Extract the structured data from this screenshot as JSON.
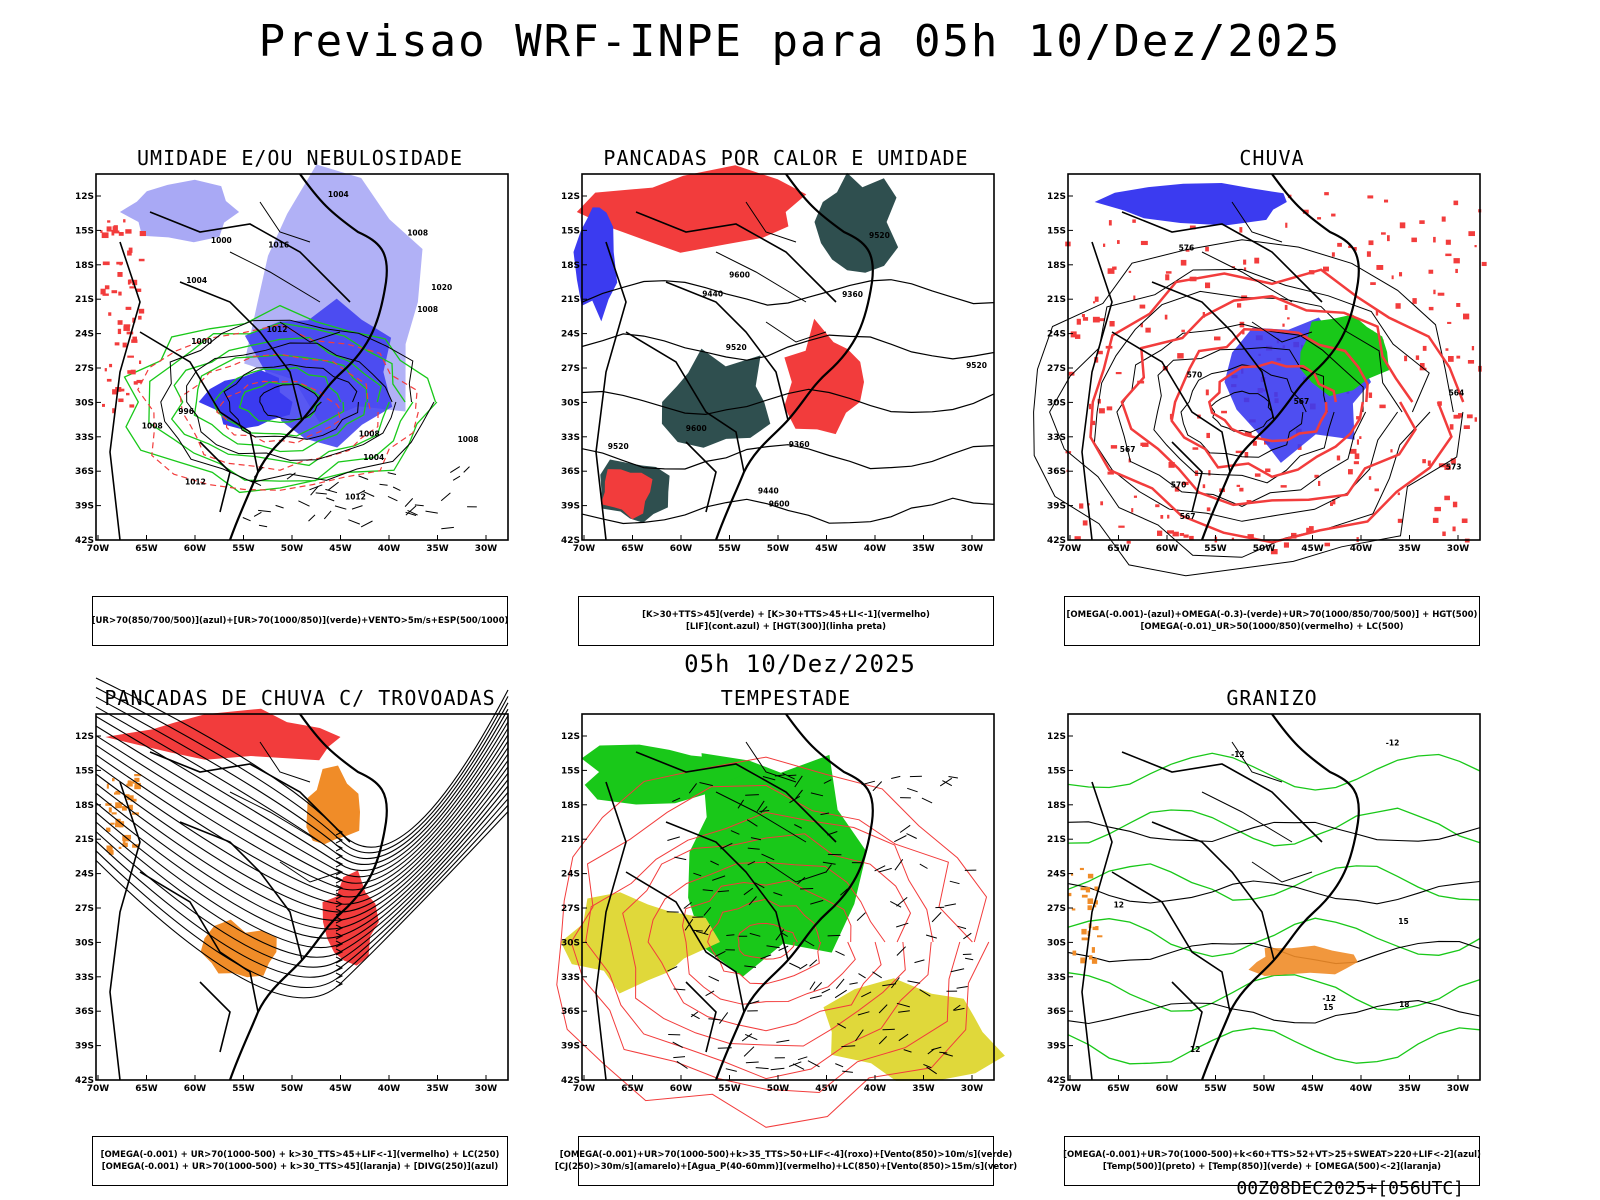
{
  "header": {
    "title": "Previsao WRF-INPE  para 05h 10/Dez/2025"
  },
  "middle_title": "05h 10/Dez/2025",
  "footer_stamp": "00Z08DEC2025+[056UTC]",
  "axes": {
    "lat_labels": [
      "12S",
      "15S",
      "18S",
      "21S",
      "24S",
      "27S",
      "30S",
      "33S",
      "36S",
      "39S",
      "42S"
    ],
    "lon_labels": [
      "70W",
      "65W",
      "60W",
      "55W",
      "50W",
      "45W",
      "40W",
      "35W",
      "30W"
    ]
  },
  "colors": {
    "blue": "#3b3bf0",
    "light_blue": "#a9a9f5",
    "green": "#19c819",
    "red": "#f23c3c",
    "dark_teal": "#2f4f4f",
    "orange": "#f08c28",
    "yellow": "#e0d83a"
  },
  "panels": [
    {
      "id": "umidade",
      "title": "UMIDADE E/OU NEBULOSIDADE",
      "legend": [
        "[UR>70(850/700/500)](azul)+[UR>70(1000/850)](verde)+VENTO>5m/s+ESP(500/1000)"
      ],
      "contour_labels": [
        "1012",
        "1008",
        "1008",
        "1004",
        "1012",
        "1008",
        "1012",
        "1004",
        "1000",
        "996",
        "1020",
        "1000",
        "1008",
        "1008",
        "1016",
        "1004"
      ]
    },
    {
      "id": "pancadas",
      "title": "PANCADAS POR CALOR E UMIDADE",
      "legend": [
        "[K>30+TTS>45](verde) + [K>30+TTS>45+LI<-1](vermelho)",
        "[LIF](cont.azul) + [HGT(300)](linha preta)"
      ],
      "contour_labels": [
        "9600",
        "9600",
        "9520",
        "9520",
        "9440",
        "9360",
        "9520",
        "9440",
        "9360",
        "9600",
        "9520"
      ]
    },
    {
      "id": "chuva",
      "title": "CHUVA",
      "legend": [
        "[OMEGA(-0.001)-(azul)+OMEGA(-0.3)-(verde)+UR>70(1000/850/700/500)] + HGT(500)",
        "[OMEGA(-0.01)_UR>50(1000/850)(vermelho) + LC(500)"
      ],
      "contour_labels": [
        "570",
        "576",
        "573",
        "567",
        "570",
        "567",
        "567",
        "564"
      ]
    },
    {
      "id": "trovoadas",
      "title": "PANCADAS DE CHUVA C/ TROVOADAS",
      "legend": [
        "[OMEGA(-0.001) + UR>70(1000-500) + k>30_TTS>45+LIF<-1](vermelho) + LC(250)",
        "[OMEGA(-0.001) + UR>70(1000-500) + k>30_TTS>45](laranja) + [DIVG(250)](azul)"
      ],
      "contour_labels": []
    },
    {
      "id": "tempestade",
      "title": "TEMPESTADE",
      "legend": [
        "[OMEGA(-0.001)+UR>70(1000-500)+k>35_TTS>50+LIF<-4](roxo)+[Vento(850)>10m/s](verde)",
        "[CJ(250)>30m/s](amarelo)+[Agua_P(40-60mm)](vermelho)+LC(850)+[Vento(850)>15m/s](vetor)"
      ],
      "contour_labels": []
    },
    {
      "id": "granizo",
      "title": "GRANIZO",
      "legend": [
        "[OMEGA(-0.001)+UR>70(1000-500)+k<60+TTS>52+VT>25+SWEAT>220+LIF<-2](azul)",
        "[Temp(500)](preto) + [Temp(850)](verde) + [OMEGA(500)<-2](laranja)"
      ],
      "contour_labels": [
        "-12",
        "-12",
        "-12",
        "15",
        "15",
        "18",
        "12",
        "12"
      ]
    }
  ]
}
